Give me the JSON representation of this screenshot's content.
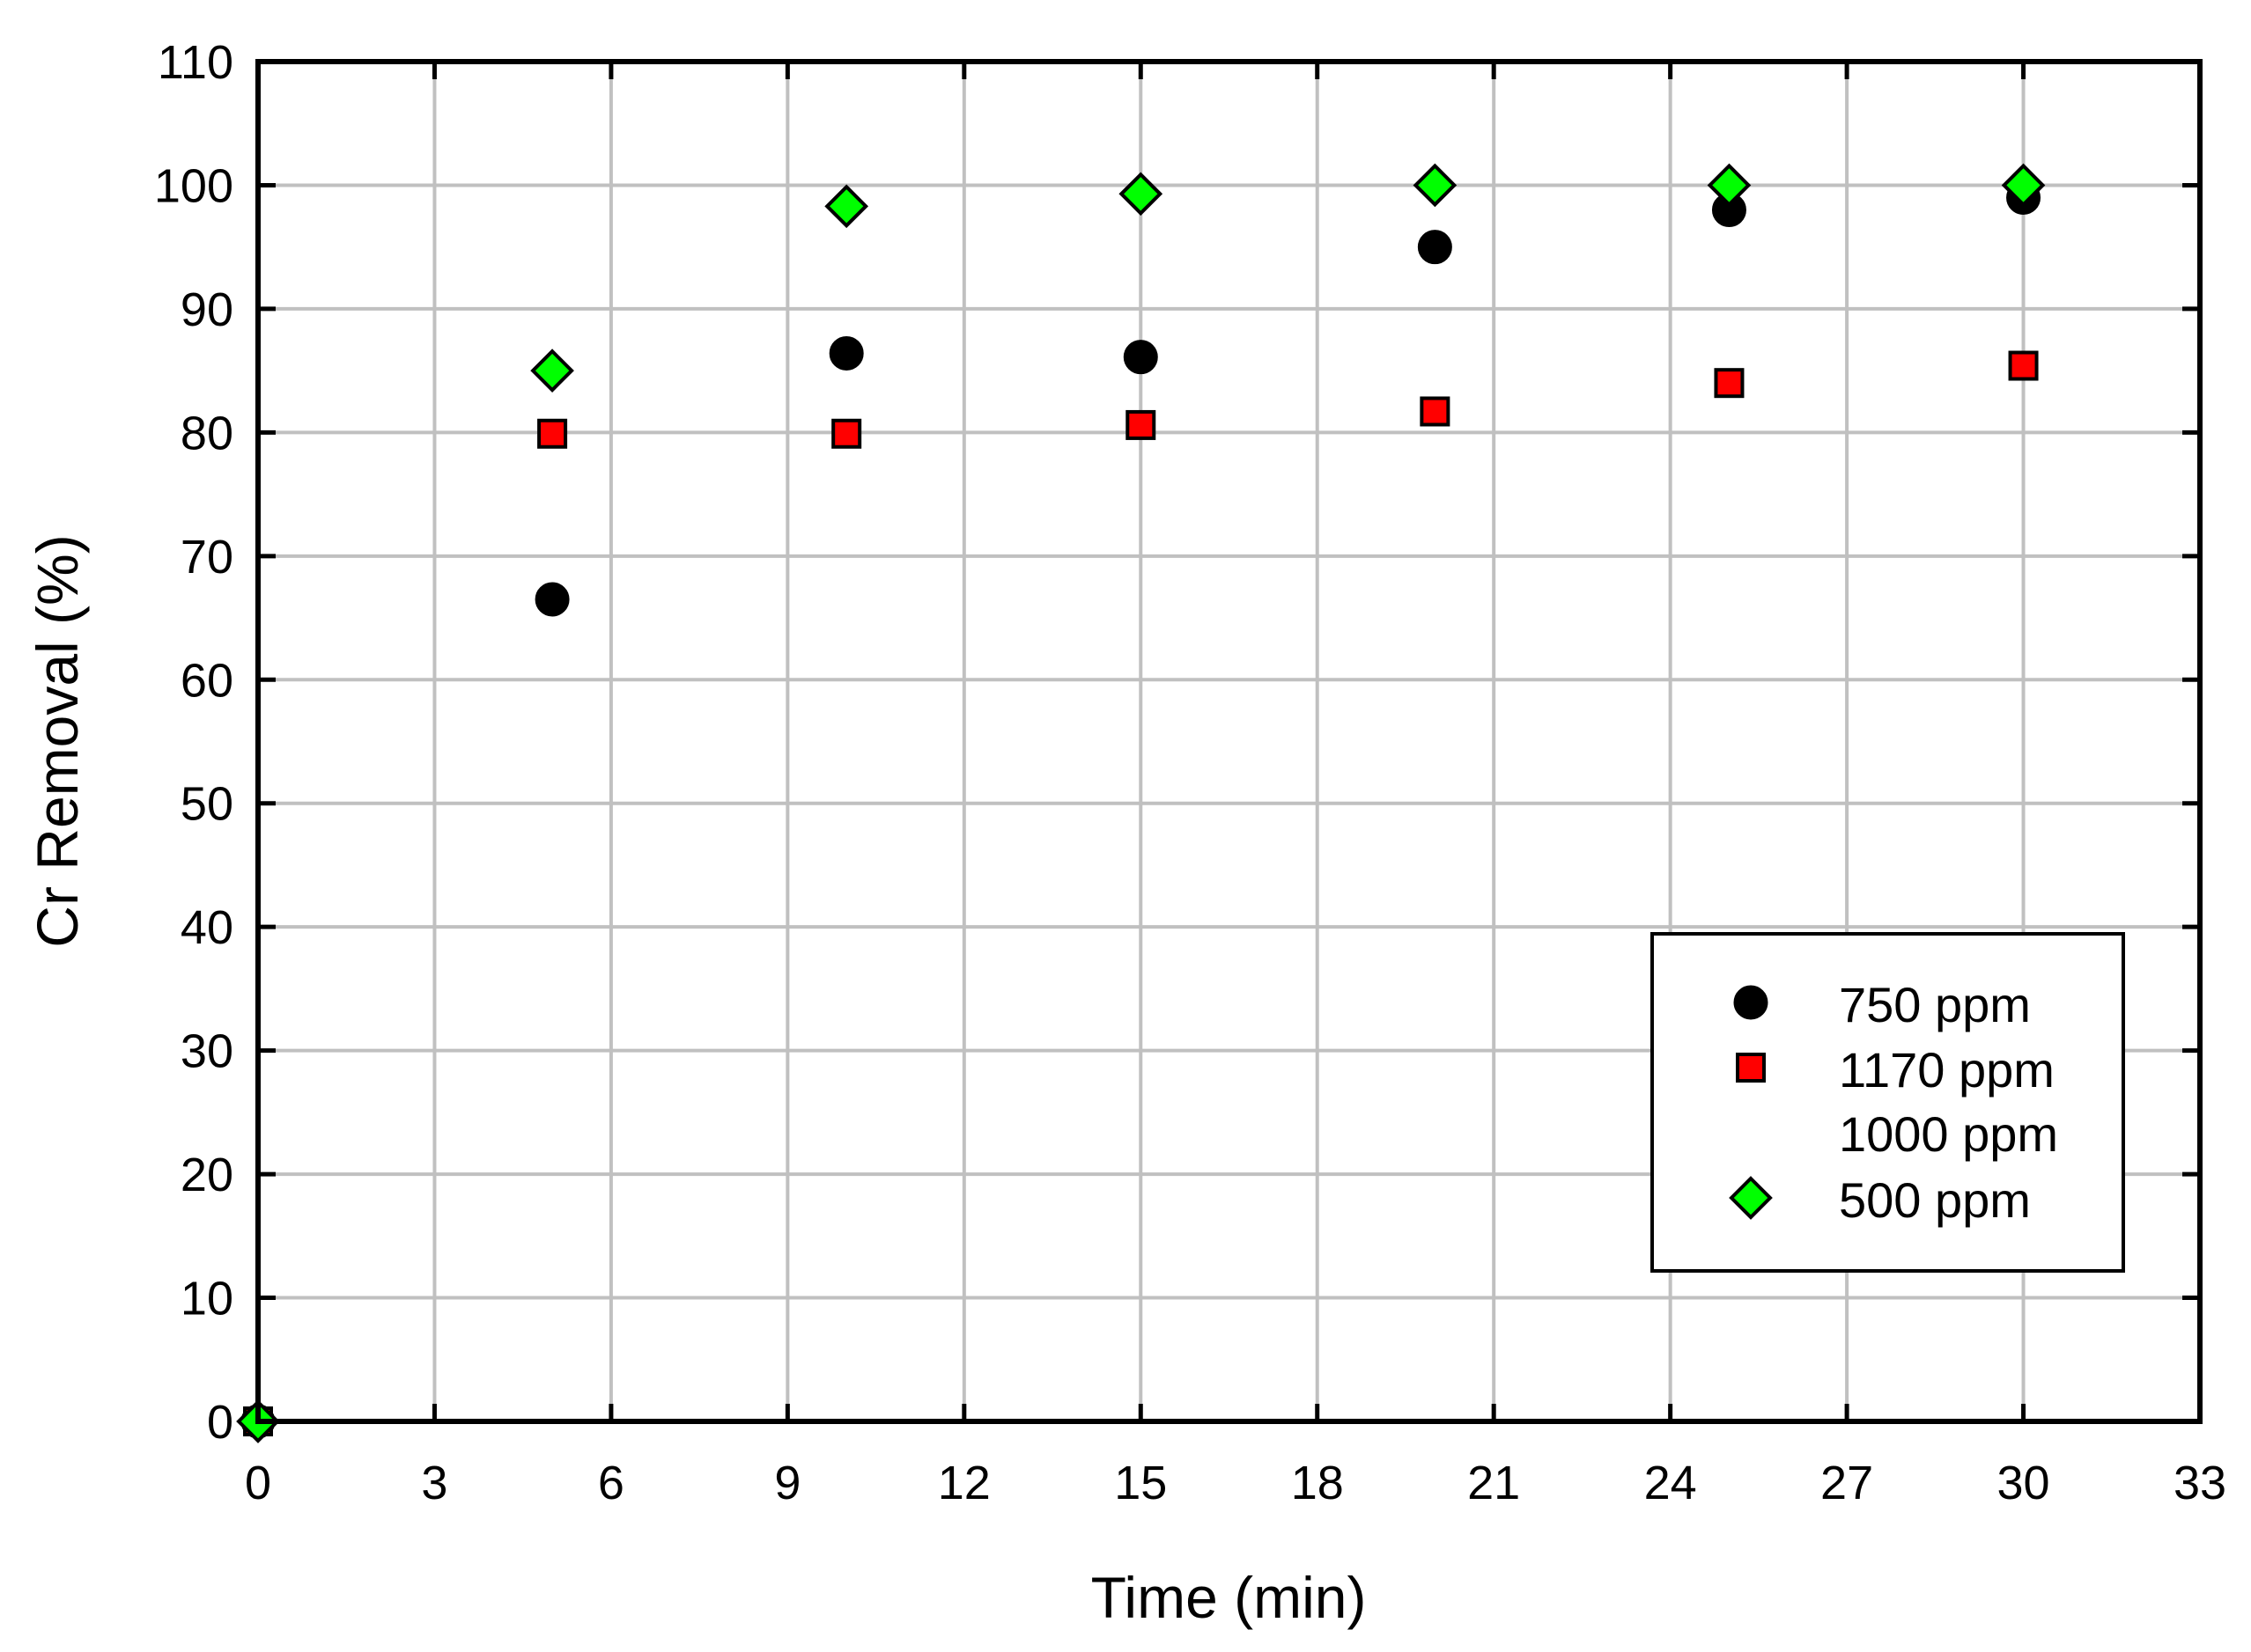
{
  "chart_data": {
    "type": "scatter",
    "xlabel": "Time (min)",
    "ylabel": "Cr Removal (%)",
    "xlim": [
      0,
      33
    ],
    "ylim": [
      0,
      110
    ],
    "xticks": [
      0,
      3,
      6,
      9,
      12,
      15,
      18,
      21,
      24,
      27,
      30,
      33
    ],
    "yticks": [
      0,
      10,
      20,
      30,
      40,
      50,
      60,
      70,
      80,
      90,
      100,
      110
    ],
    "grid": true,
    "legend_position": "lower-right",
    "series": [
      {
        "name": "750 ppm",
        "marker": "circle",
        "color": "#000000",
        "x": [
          0,
          5,
          10,
          15,
          20,
          25,
          30
        ],
        "y": [
          0,
          66.5,
          86.4,
          86.1,
          95.0,
          98.0,
          99.0
        ]
      },
      {
        "name": "1170 ppm",
        "marker": "square",
        "color": "#ff0000",
        "x": [
          0,
          5,
          10,
          15,
          20,
          25,
          30
        ],
        "y": [
          0,
          79.9,
          79.9,
          80.6,
          81.7,
          84.0,
          85.4
        ]
      },
      {
        "name": "1000 ppm",
        "marker": "none",
        "color": "#ffffff",
        "x": [],
        "y": []
      },
      {
        "name": "500 ppm",
        "marker": "diamond",
        "color": "#00ff00",
        "x": [
          0,
          5,
          10,
          15,
          20,
          25,
          30
        ],
        "y": [
          0,
          85.0,
          98.3,
          99.3,
          100.0,
          100.0,
          100.0
        ]
      }
    ]
  }
}
